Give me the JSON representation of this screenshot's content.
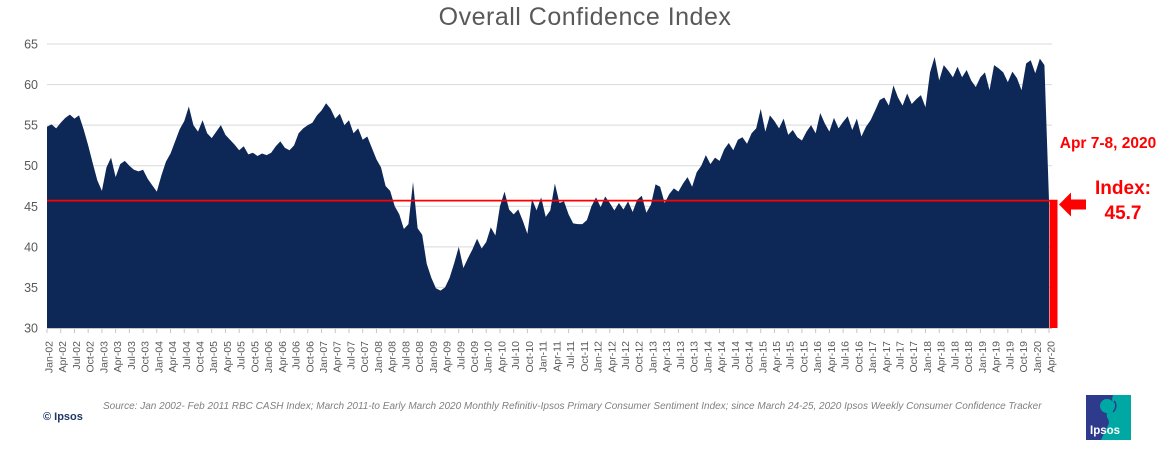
{
  "title": "Overall Confidence Index",
  "annotations": {
    "date_label": "Apr 7-8, 2020",
    "index_label": "Index:",
    "index_value": "45.7"
  },
  "source": {
    "text": "Source: Jan 2002- Feb 2011 RBC CASH Index; March 2011-to Early March 2020 Monthly Refinitiv-Ipsos Primary Consumer Sentiment Index; since March 24-25,  2020 Ipsos Weekly Consumer Confidence Tracker",
    "copyright": "© Ipsos"
  },
  "logo": {
    "text": "Ipsos"
  },
  "colors": {
    "area": "#0d2757",
    "highlight": "#ff0000",
    "grid": "#d9d9d9",
    "axis_line": "#c6c6c6",
    "axis_text": "#595959",
    "title_text": "#595959",
    "source_text": "#808080",
    "copyright_text": "#1f3864",
    "logo_navy": "#2e3b8c",
    "logo_teal": "#00a8a4"
  },
  "chart_data": {
    "type": "area",
    "title": "Overall Confidence Index",
    "xlabel": "",
    "ylabel": "",
    "ylim": [
      30,
      65
    ],
    "yticks": [
      30,
      35,
      40,
      45,
      50,
      55,
      60,
      65
    ],
    "grid": "horizontal",
    "x_unit": "monthly",
    "x_start": "Jan-2002",
    "x_end": "Apr-2020",
    "x_tick_labels": [
      "Jan-02",
      "Apr-02",
      "Jul-02",
      "Oct-02",
      "Jan-03",
      "Apr-03",
      "Jul-03",
      "Oct-03",
      "Jan-04",
      "Apr-04",
      "Jul-04",
      "Oct-04",
      "Jan-05",
      "Apr-05",
      "Jul-05",
      "Oct-05",
      "Jan-06",
      "Apr-06",
      "Jul-06",
      "Oct-06",
      "Jan-07",
      "Apr-07",
      "Jul-07",
      "Oct-07",
      "Jan-08",
      "Apr-08",
      "Jul-08",
      "Oct-08",
      "Jan-09",
      "Apr-09",
      "Jul-09",
      "Oct-09",
      "Jan-10",
      "Apr-10",
      "Jul-10",
      "Oct-10",
      "Jan-11",
      "Apr-11",
      "Jul-11",
      "Oct-11",
      "Jan-12",
      "Apr-12",
      "Jul-12",
      "Oct-12",
      "Jan-13",
      "Apr-13",
      "Jul-13",
      "Oct-13",
      "Jan-14",
      "Apr-14",
      "Jul-14",
      "Oct-14",
      "Jan-15",
      "Apr-15",
      "Jul-15",
      "Oct-15",
      "Jan-16",
      "Apr-16",
      "Jul-16",
      "Oct-16",
      "Jan-17",
      "Apr-17",
      "Jul-17",
      "Oct-17",
      "Jan-18",
      "Apr-18",
      "Jul-18",
      "Oct-18",
      "Jan-19",
      "Apr-19",
      "Jul-19",
      "Oct-19",
      "Jan-20",
      "Apr-20"
    ],
    "series": [
      {
        "name": "Overall Confidence Index",
        "values": [
          54.8,
          55.1,
          54.6,
          55.3,
          55.9,
          56.3,
          55.8,
          56.2,
          54.5,
          52.5,
          50.3,
          48.2,
          46.9,
          49.8,
          51.0,
          48.6,
          50.2,
          50.6,
          50.0,
          49.5,
          49.3,
          49.5,
          48.4,
          47.6,
          46.8,
          48.8,
          50.5,
          51.5,
          53.0,
          54.5,
          55.5,
          57.3,
          55.0,
          54.2,
          55.6,
          54.0,
          53.4,
          54.2,
          55.0,
          53.8,
          53.2,
          52.6,
          51.9,
          52.4,
          51.4,
          51.6,
          51.2,
          51.5,
          51.3,
          51.6,
          52.4,
          53.0,
          52.2,
          51.9,
          52.5,
          54.0,
          54.6,
          55.0,
          55.3,
          56.2,
          56.8,
          57.7,
          57.0,
          55.8,
          56.4,
          55.0,
          55.6,
          54.0,
          54.6,
          53.2,
          53.6,
          52.2,
          50.8,
          49.8,
          47.5,
          46.9,
          45.0,
          44.0,
          42.2,
          42.8,
          48.0,
          42.3,
          41.5,
          37.9,
          36.2,
          34.9,
          34.6,
          35.0,
          36.2,
          38.0,
          40.0,
          37.4,
          38.6,
          39.7,
          41.0,
          39.8,
          40.6,
          42.4,
          41.4,
          45.0,
          46.8,
          44.6,
          44.0,
          44.6,
          43.2,
          41.6,
          45.9,
          44.5,
          46.1,
          43.7,
          44.5,
          47.8,
          45.4,
          45.6,
          44.0,
          42.9,
          42.8,
          42.8,
          43.3,
          45.0,
          46.1,
          44.9,
          46.2,
          45.4,
          44.5,
          45.4,
          44.6,
          45.6,
          44.3,
          45.8,
          46.3,
          44.2,
          45.2,
          47.7,
          47.4,
          45.4,
          46.5,
          47.2,
          46.8,
          47.8,
          48.6,
          47.4,
          49.2,
          50.0,
          51.3,
          50.2,
          51.0,
          50.6,
          52.0,
          52.8,
          51.9,
          53.2,
          53.5,
          52.7,
          54.0,
          54.6,
          57.0,
          54.2,
          56.2,
          55.5,
          54.6,
          55.8,
          53.8,
          54.4,
          53.5,
          53.1,
          54.2,
          55.0,
          54.0,
          56.5,
          55.2,
          54.2,
          55.9,
          54.6,
          55.4,
          56.1,
          54.4,
          55.8,
          53.6,
          54.8,
          55.6,
          56.8,
          58.1,
          58.4,
          57.4,
          59.9,
          58.4,
          57.4,
          58.9,
          57.6,
          58.2,
          58.7,
          57.2,
          61.5,
          63.4,
          60.5,
          62.4,
          61.7,
          60.9,
          62.2,
          60.9,
          61.8,
          60.5,
          59.7,
          60.9,
          61.5,
          59.3,
          62.4,
          62.0,
          61.5,
          60.3,
          61.6,
          60.8,
          59.3,
          62.6,
          63.0,
          61.4,
          63.2,
          62.4,
          45.7
        ]
      }
    ],
    "reference_line": {
      "value": 45.7
    },
    "last_point": {
      "date": "Apr 7-8, 2020",
      "value": 45.7
    }
  }
}
